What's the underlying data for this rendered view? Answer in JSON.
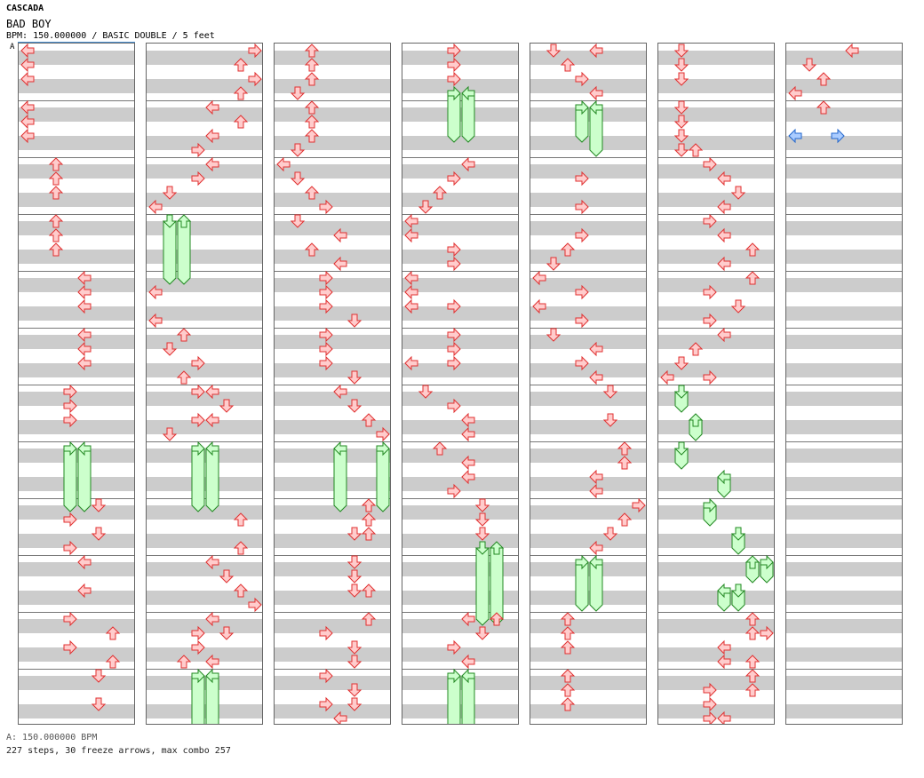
{
  "header": {
    "artist": "CASCADA",
    "title": "BAD BOY",
    "info": "BPM: 150.000000 / BASIC DOUBLE / 5 feet"
  },
  "section_label": "A",
  "footer": {
    "bpm_line": "A: 150.000000 BPM",
    "summary_line": "227 steps, 30 freeze arrows, max combo 257"
  },
  "colors": {
    "tap_fill": "#ffcccc",
    "tap_stroke": "#e03030",
    "freeze_fill": "#ccffcc",
    "freeze_stroke": "#228822",
    "shock_fill": "#aaccff",
    "shock_stroke": "#2266cc",
    "stripe": "#cccccc"
  },
  "chart_data": {
    "type": "step-chart",
    "columns": 7,
    "measures_per_column": 12,
    "rows_per_measure": 4,
    "lanes": [
      "P1-left",
      "P1-down",
      "P1-up",
      "P1-right",
      "P2-left",
      "P2-down",
      "P2-up",
      "P2-right"
    ],
    "notes": [
      {
        "c": 0,
        "r": 0,
        "l": 0
      },
      {
        "c": 0,
        "r": 1,
        "l": 0
      },
      {
        "c": 0,
        "r": 2,
        "l": 0
      },
      {
        "c": 0,
        "r": 4,
        "l": 0
      },
      {
        "c": 0,
        "r": 5,
        "l": 0
      },
      {
        "c": 0,
        "r": 6,
        "l": 0
      },
      {
        "c": 0,
        "r": 8,
        "l": 2
      },
      {
        "c": 0,
        "r": 9,
        "l": 2
      },
      {
        "c": 0,
        "r": 10,
        "l": 2
      },
      {
        "c": 0,
        "r": 12,
        "l": 2
      },
      {
        "c": 0,
        "r": 13,
        "l": 2
      },
      {
        "c": 0,
        "r": 14,
        "l": 2
      },
      {
        "c": 0,
        "r": 16,
        "l": 4
      },
      {
        "c": 0,
        "r": 17,
        "l": 4
      },
      {
        "c": 0,
        "r": 18,
        "l": 4
      },
      {
        "c": 0,
        "r": 20,
        "l": 4
      },
      {
        "c": 0,
        "r": 21,
        "l": 4
      },
      {
        "c": 0,
        "r": 22,
        "l": 4
      },
      {
        "c": 0,
        "r": 24,
        "l": 3
      },
      {
        "c": 0,
        "r": 25,
        "l": 3
      },
      {
        "c": 0,
        "r": 26,
        "l": 3
      },
      {
        "c": 0,
        "r": 28,
        "l": 3,
        "freeze": 4
      },
      {
        "c": 0,
        "r": 28,
        "l": 4,
        "freeze": 4
      },
      {
        "c": 0,
        "r": 32,
        "l": 5
      },
      {
        "c": 0,
        "r": 33,
        "l": 3
      },
      {
        "c": 0,
        "r": 34,
        "l": 5
      },
      {
        "c": 0,
        "r": 35,
        "l": 3
      },
      {
        "c": 0,
        "r": 36,
        "l": 4
      },
      {
        "c": 0,
        "r": 38,
        "l": 4
      },
      {
        "c": 0,
        "r": 40,
        "l": 3
      },
      {
        "c": 0,
        "r": 41,
        "l": 6
      },
      {
        "c": 0,
        "r": 42,
        "l": 3
      },
      {
        "c": 0,
        "r": 43,
        "l": 6
      },
      {
        "c": 0,
        "r": 44,
        "l": 5
      },
      {
        "c": 0,
        "r": 46,
        "l": 5
      },
      {
        "c": 1,
        "r": 0,
        "l": 7
      },
      {
        "c": 1,
        "r": 1,
        "l": 6
      },
      {
        "c": 1,
        "r": 2,
        "l": 7
      },
      {
        "c": 1,
        "r": 3,
        "l": 6
      },
      {
        "c": 1,
        "r": 4,
        "l": 4
      },
      {
        "c": 1,
        "r": 5,
        "l": 6
      },
      {
        "c": 1,
        "r": 6,
        "l": 4
      },
      {
        "c": 1,
        "r": 7,
        "l": 3
      },
      {
        "c": 1,
        "r": 8,
        "l": 4
      },
      {
        "c": 1,
        "r": 9,
        "l": 3
      },
      {
        "c": 1,
        "r": 10,
        "l": 1
      },
      {
        "c": 1,
        "r": 11,
        "l": 0
      },
      {
        "c": 1,
        "r": 12,
        "l": 1,
        "freeze": 4
      },
      {
        "c": 1,
        "r": 12,
        "l": 2,
        "freeze": 4
      },
      {
        "c": 1,
        "r": 17,
        "l": 0
      },
      {
        "c": 1,
        "r": 19,
        "l": 0
      },
      {
        "c": 1,
        "r": 20,
        "l": 2
      },
      {
        "c": 1,
        "r": 21,
        "l": 1
      },
      {
        "c": 1,
        "r": 22,
        "l": 3
      },
      {
        "c": 1,
        "r": 23,
        "l": 2
      },
      {
        "c": 1,
        "r": 24,
        "l": 3
      },
      {
        "c": 1,
        "r": 24,
        "l": 4
      },
      {
        "c": 1,
        "r": 25,
        "l": 5
      },
      {
        "c": 1,
        "r": 26,
        "l": 3
      },
      {
        "c": 1,
        "r": 26,
        "l": 4
      },
      {
        "c": 1,
        "r": 27,
        "l": 1
      },
      {
        "c": 1,
        "r": 28,
        "l": 3,
        "freeze": 4
      },
      {
        "c": 1,
        "r": 28,
        "l": 4,
        "freeze": 4
      },
      {
        "c": 1,
        "r": 33,
        "l": 6
      },
      {
        "c": 1,
        "r": 35,
        "l": 6
      },
      {
        "c": 1,
        "r": 36,
        "l": 4
      },
      {
        "c": 1,
        "r": 37,
        "l": 5
      },
      {
        "c": 1,
        "r": 38,
        "l": 6
      },
      {
        "c": 1,
        "r": 39,
        "l": 7
      },
      {
        "c": 1,
        "r": 40,
        "l": 4
      },
      {
        "c": 1,
        "r": 41,
        "l": 3
      },
      {
        "c": 1,
        "r": 41,
        "l": 5
      },
      {
        "c": 1,
        "r": 42,
        "l": 3
      },
      {
        "c": 1,
        "r": 43,
        "l": 2
      },
      {
        "c": 1,
        "r": 43,
        "l": 4
      },
      {
        "c": 1,
        "r": 44,
        "l": 3,
        "freeze": 4
      },
      {
        "c": 1,
        "r": 44,
        "l": 4,
        "freeze": 4
      },
      {
        "c": 2,
        "r": 0,
        "l": 2
      },
      {
        "c": 2,
        "r": 1,
        "l": 2
      },
      {
        "c": 2,
        "r": 2,
        "l": 2
      },
      {
        "c": 2,
        "r": 3,
        "l": 1
      },
      {
        "c": 2,
        "r": 4,
        "l": 2
      },
      {
        "c": 2,
        "r": 5,
        "l": 2
      },
      {
        "c": 2,
        "r": 6,
        "l": 2
      },
      {
        "c": 2,
        "r": 7,
        "l": 1
      },
      {
        "c": 2,
        "r": 8,
        "l": 0
      },
      {
        "c": 2,
        "r": 9,
        "l": 1
      },
      {
        "c": 2,
        "r": 10,
        "l": 2
      },
      {
        "c": 2,
        "r": 11,
        "l": 3
      },
      {
        "c": 2,
        "r": 12,
        "l": 1
      },
      {
        "c": 2,
        "r": 13,
        "l": 4
      },
      {
        "c": 2,
        "r": 14,
        "l": 2
      },
      {
        "c": 2,
        "r": 15,
        "l": 4
      },
      {
        "c": 2,
        "r": 16,
        "l": 3
      },
      {
        "c": 2,
        "r": 17,
        "l": 3
      },
      {
        "c": 2,
        "r": 18,
        "l": 3
      },
      {
        "c": 2,
        "r": 19,
        "l": 5
      },
      {
        "c": 2,
        "r": 20,
        "l": 3
      },
      {
        "c": 2,
        "r": 21,
        "l": 3
      },
      {
        "c": 2,
        "r": 22,
        "l": 3
      },
      {
        "c": 2,
        "r": 23,
        "l": 5
      },
      {
        "c": 2,
        "r": 24,
        "l": 4
      },
      {
        "c": 2,
        "r": 25,
        "l": 5
      },
      {
        "c": 2,
        "r": 26,
        "l": 6
      },
      {
        "c": 2,
        "r": 27,
        "l": 7
      },
      {
        "c": 2,
        "r": 28,
        "l": 4,
        "freeze": 4
      },
      {
        "c": 2,
        "r": 28,
        "l": 7,
        "freeze": 4
      },
      {
        "c": 2,
        "r": 32,
        "l": 6
      },
      {
        "c": 2,
        "r": 33,
        "l": 6
      },
      {
        "c": 2,
        "r": 34,
        "l": 5
      },
      {
        "c": 2,
        "r": 34,
        "l": 6
      },
      {
        "c": 2,
        "r": 36,
        "l": 5
      },
      {
        "c": 2,
        "r": 37,
        "l": 5
      },
      {
        "c": 2,
        "r": 38,
        "l": 5
      },
      {
        "c": 2,
        "r": 38,
        "l": 6
      },
      {
        "c": 2,
        "r": 40,
        "l": 6
      },
      {
        "c": 2,
        "r": 41,
        "l": 3
      },
      {
        "c": 2,
        "r": 42,
        "l": 5
      },
      {
        "c": 2,
        "r": 43,
        "l": 5
      },
      {
        "c": 2,
        "r": 44,
        "l": 3
      },
      {
        "c": 2,
        "r": 45,
        "l": 5
      },
      {
        "c": 2,
        "r": 46,
        "l": 3
      },
      {
        "c": 2,
        "r": 46,
        "l": 5
      },
      {
        "c": 2,
        "r": 47,
        "l": 4
      },
      {
        "c": 3,
        "r": 0,
        "l": 3
      },
      {
        "c": 3,
        "r": 1,
        "l": 3
      },
      {
        "c": 3,
        "r": 2,
        "l": 3
      },
      {
        "c": 3,
        "r": 3,
        "l": 3,
        "freeze": 3
      },
      {
        "c": 3,
        "r": 3,
        "l": 4,
        "freeze": 3
      },
      {
        "c": 3,
        "r": 8,
        "l": 4
      },
      {
        "c": 3,
        "r": 9,
        "l": 3
      },
      {
        "c": 3,
        "r": 10,
        "l": 2
      },
      {
        "c": 3,
        "r": 11,
        "l": 1
      },
      {
        "c": 3,
        "r": 12,
        "l": 0
      },
      {
        "c": 3,
        "r": 13,
        "l": 0
      },
      {
        "c": 3,
        "r": 14,
        "l": 3
      },
      {
        "c": 3,
        "r": 15,
        "l": 3
      },
      {
        "c": 3,
        "r": 16,
        "l": 0
      },
      {
        "c": 3,
        "r": 17,
        "l": 0
      },
      {
        "c": 3,
        "r": 18,
        "l": 0
      },
      {
        "c": 3,
        "r": 18,
        "l": 3
      },
      {
        "c": 3,
        "r": 20,
        "l": 3
      },
      {
        "c": 3,
        "r": 21,
        "l": 3
      },
      {
        "c": 3,
        "r": 22,
        "l": 0
      },
      {
        "c": 3,
        "r": 22,
        "l": 3
      },
      {
        "c": 3,
        "r": 24,
        "l": 1
      },
      {
        "c": 3,
        "r": 25,
        "l": 3
      },
      {
        "c": 3,
        "r": 26,
        "l": 4
      },
      {
        "c": 3,
        "r": 27,
        "l": 4
      },
      {
        "c": 3,
        "r": 28,
        "l": 2
      },
      {
        "c": 3,
        "r": 29,
        "l": 4
      },
      {
        "c": 3,
        "r": 30,
        "l": 4
      },
      {
        "c": 3,
        "r": 31,
        "l": 3
      },
      {
        "c": 3,
        "r": 32,
        "l": 5
      },
      {
        "c": 3,
        "r": 33,
        "l": 5
      },
      {
        "c": 3,
        "r": 34,
        "l": 5
      },
      {
        "c": 3,
        "r": 35,
        "l": 5,
        "freeze": 5
      },
      {
        "c": 3,
        "r": 35,
        "l": 6,
        "freeze": 5
      },
      {
        "c": 3,
        "r": 40,
        "l": 4
      },
      {
        "c": 3,
        "r": 40,
        "l": 6
      },
      {
        "c": 3,
        "r": 41,
        "l": 5
      },
      {
        "c": 3,
        "r": 42,
        "l": 3
      },
      {
        "c": 3,
        "r": 43,
        "l": 4
      },
      {
        "c": 3,
        "r": 44,
        "l": 3,
        "freeze": 4
      },
      {
        "c": 3,
        "r": 44,
        "l": 4,
        "freeze": 4
      },
      {
        "c": 4,
        "r": 0,
        "l": 1
      },
      {
        "c": 4,
        "r": 0,
        "l": 4
      },
      {
        "c": 4,
        "r": 1,
        "l": 2
      },
      {
        "c": 4,
        "r": 2,
        "l": 3
      },
      {
        "c": 4,
        "r": 3,
        "l": 4
      },
      {
        "c": 4,
        "r": 4,
        "l": 3,
        "freeze": 2
      },
      {
        "c": 4,
        "r": 4,
        "l": 4,
        "freeze": 3
      },
      {
        "c": 4,
        "r": 9,
        "l": 3
      },
      {
        "c": 4,
        "r": 11,
        "l": 3
      },
      {
        "c": 4,
        "r": 13,
        "l": 3
      },
      {
        "c": 4,
        "r": 14,
        "l": 2
      },
      {
        "c": 4,
        "r": 15,
        "l": 1
      },
      {
        "c": 4,
        "r": 16,
        "l": 0
      },
      {
        "c": 4,
        "r": 17,
        "l": 3
      },
      {
        "c": 4,
        "r": 18,
        "l": 0
      },
      {
        "c": 4,
        "r": 19,
        "l": 3
      },
      {
        "c": 4,
        "r": 20,
        "l": 1
      },
      {
        "c": 4,
        "r": 21,
        "l": 4
      },
      {
        "c": 4,
        "r": 22,
        "l": 3
      },
      {
        "c": 4,
        "r": 23,
        "l": 4
      },
      {
        "c": 4,
        "r": 24,
        "l": 5
      },
      {
        "c": 4,
        "r": 26,
        "l": 5
      },
      {
        "c": 4,
        "r": 28,
        "l": 6
      },
      {
        "c": 4,
        "r": 29,
        "l": 6
      },
      {
        "c": 4,
        "r": 30,
        "l": 4
      },
      {
        "c": 4,
        "r": 31,
        "l": 4
      },
      {
        "c": 4,
        "r": 32,
        "l": 7
      },
      {
        "c": 4,
        "r": 33,
        "l": 6
      },
      {
        "c": 4,
        "r": 34,
        "l": 5
      },
      {
        "c": 4,
        "r": 35,
        "l": 4
      },
      {
        "c": 4,
        "r": 36,
        "l": 3,
        "freeze": 3
      },
      {
        "c": 4,
        "r": 36,
        "l": 4,
        "freeze": 3
      },
      {
        "c": 4,
        "r": 40,
        "l": 2
      },
      {
        "c": 4,
        "r": 41,
        "l": 2
      },
      {
        "c": 4,
        "r": 42,
        "l": 2
      },
      {
        "c": 4,
        "r": 44,
        "l": 2
      },
      {
        "c": 4,
        "r": 45,
        "l": 2
      },
      {
        "c": 4,
        "r": 46,
        "l": 2
      },
      {
        "c": 5,
        "r": 0,
        "l": 1
      },
      {
        "c": 5,
        "r": 1,
        "l": 1
      },
      {
        "c": 5,
        "r": 2,
        "l": 1
      },
      {
        "c": 5,
        "r": 4,
        "l": 1
      },
      {
        "c": 5,
        "r": 5,
        "l": 1
      },
      {
        "c": 5,
        "r": 6,
        "l": 1
      },
      {
        "c": 5,
        "r": 7,
        "l": 1
      },
      {
        "c": 5,
        "r": 7,
        "l": 2
      },
      {
        "c": 5,
        "r": 8,
        "l": 3
      },
      {
        "c": 5,
        "r": 9,
        "l": 4
      },
      {
        "c": 5,
        "r": 10,
        "l": 5
      },
      {
        "c": 5,
        "r": 11,
        "l": 4
      },
      {
        "c": 5,
        "r": 12,
        "l": 3
      },
      {
        "c": 5,
        "r": 13,
        "l": 4
      },
      {
        "c": 5,
        "r": 14,
        "l": 6
      },
      {
        "c": 5,
        "r": 15,
        "l": 4
      },
      {
        "c": 5,
        "r": 16,
        "l": 6
      },
      {
        "c": 5,
        "r": 17,
        "l": 3
      },
      {
        "c": 5,
        "r": 18,
        "l": 5
      },
      {
        "c": 5,
        "r": 19,
        "l": 3
      },
      {
        "c": 5,
        "r": 20,
        "l": 4
      },
      {
        "c": 5,
        "r": 21,
        "l": 2
      },
      {
        "c": 5,
        "r": 22,
        "l": 1
      },
      {
        "c": 5,
        "r": 23,
        "l": 0
      },
      {
        "c": 5,
        "r": 23,
        "l": 3
      },
      {
        "c": 5,
        "r": 24,
        "l": 1,
        "freeze": 1
      },
      {
        "c": 5,
        "r": 26,
        "l": 2,
        "freeze": 1
      },
      {
        "c": 5,
        "r": 28,
        "l": 1,
        "freeze": 1
      },
      {
        "c": 5,
        "r": 30,
        "l": 4,
        "freeze": 1
      },
      {
        "c": 5,
        "r": 32,
        "l": 3,
        "freeze": 1
      },
      {
        "c": 5,
        "r": 34,
        "l": 5,
        "freeze": 1
      },
      {
        "c": 5,
        "r": 36,
        "l": 6,
        "freeze": 1
      },
      {
        "c": 5,
        "r": 36,
        "l": 7,
        "freeze": 1
      },
      {
        "c": 5,
        "r": 38,
        "l": 4,
        "freeze": 1
      },
      {
        "c": 5,
        "r": 38,
        "l": 5,
        "freeze": 1
      },
      {
        "c": 5,
        "r": 40,
        "l": 6
      },
      {
        "c": 5,
        "r": 41,
        "l": 6
      },
      {
        "c": 5,
        "r": 41,
        "l": 7
      },
      {
        "c": 5,
        "r": 42,
        "l": 4
      },
      {
        "c": 5,
        "r": 43,
        "l": 4
      },
      {
        "c": 5,
        "r": 43,
        "l": 6
      },
      {
        "c": 5,
        "r": 44,
        "l": 6
      },
      {
        "c": 5,
        "r": 45,
        "l": 3
      },
      {
        "c": 5,
        "r": 45,
        "l": 6
      },
      {
        "c": 5,
        "r": 46,
        "l": 3
      },
      {
        "c": 5,
        "r": 47,
        "l": 3
      },
      {
        "c": 5,
        "r": 47,
        "l": 4
      },
      {
        "c": 6,
        "r": 0,
        "l": 4
      },
      {
        "c": 6,
        "r": 1,
        "l": 1
      },
      {
        "c": 6,
        "r": 2,
        "l": 2
      },
      {
        "c": 6,
        "r": 3,
        "l": 0
      },
      {
        "c": 6,
        "r": 4,
        "l": 2
      },
      {
        "c": 6,
        "r": 6,
        "l": 0,
        "shock": true
      },
      {
        "c": 6,
        "r": 6,
        "l": 3,
        "shock": true
      }
    ]
  }
}
